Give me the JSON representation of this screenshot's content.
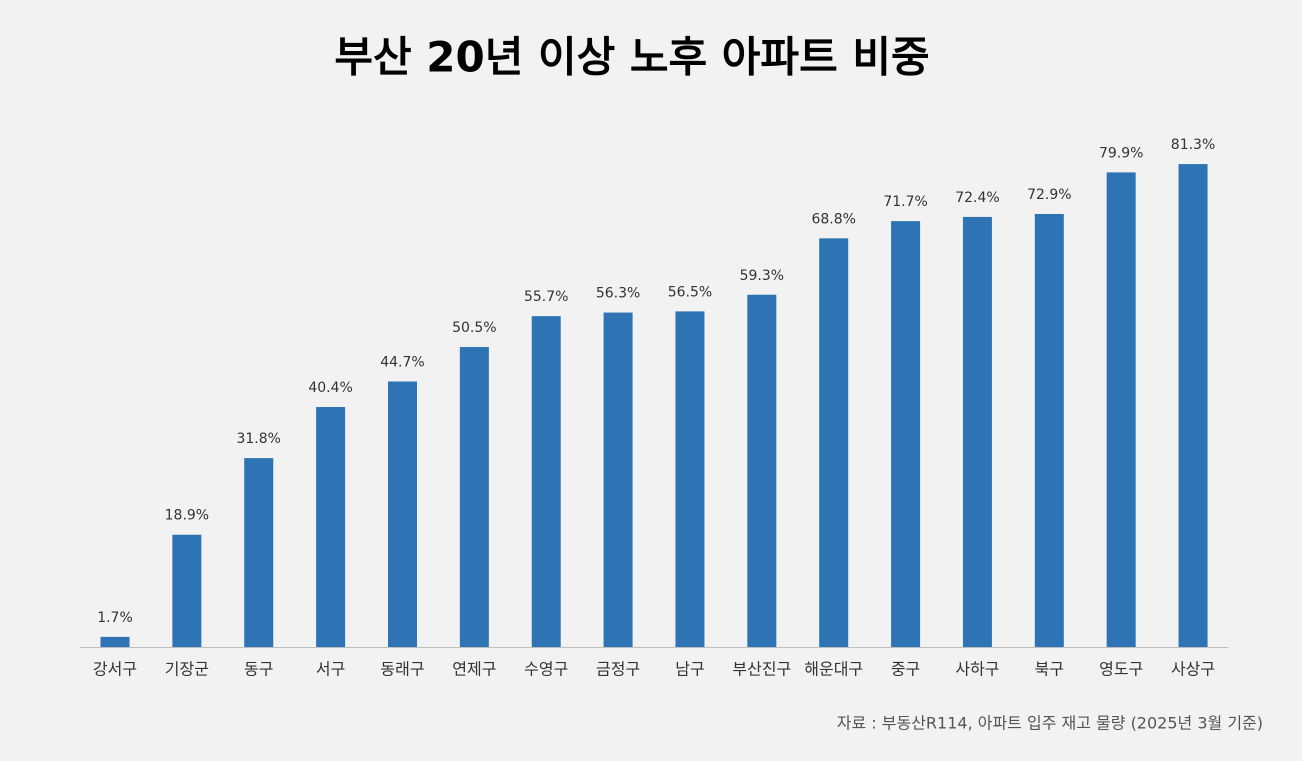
{
  "chart_data": {
    "type": "bar",
    "title": "부산 20년 이상 노후 아파트 비중",
    "categories": [
      "강서구",
      "기장군",
      "동구",
      "서구",
      "동래구",
      "연제구",
      "수영구",
      "금정구",
      "남구",
      "부산진구",
      "해운대구",
      "중구",
      "사하구",
      "북구",
      "영도구",
      "사상구"
    ],
    "values": [
      1.7,
      18.9,
      31.8,
      40.4,
      44.7,
      50.5,
      55.7,
      56.3,
      56.5,
      59.3,
      68.8,
      71.7,
      72.4,
      72.9,
      79.9,
      81.3
    ],
    "value_labels": [
      "1.7%",
      "18.9%",
      "31.8%",
      "40.4%",
      "44.7%",
      "50.5%",
      "55.7%",
      "56.3%",
      "56.5%",
      "59.3%",
      "68.8%",
      "71.7%",
      "72.4%",
      "72.9%",
      "79.9%",
      "81.3%"
    ],
    "color": "#2e74b5",
    "source": "자료 :  부동산R114, 아파트 입주 재고 물량 (2025년 3월 기준)"
  }
}
